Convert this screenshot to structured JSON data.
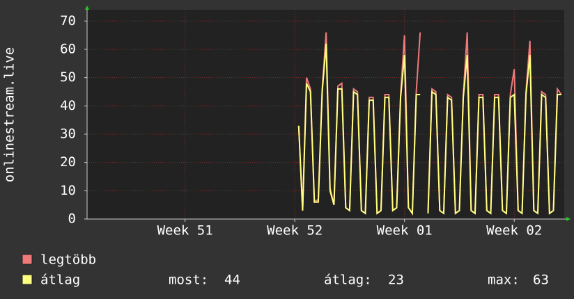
{
  "chart_data": {
    "type": "line",
    "y_label": "onlinestream.live",
    "x": [
      13.5,
      13.75,
      14.0,
      14.25,
      14.5,
      14.75,
      15.0,
      15.25,
      15.5,
      15.75,
      16.0,
      16.25,
      16.5,
      16.75,
      17.0,
      17.25,
      17.5,
      17.75,
      18.0,
      18.25,
      18.5,
      18.75,
      19.0,
      19.25,
      19.5,
      19.75,
      20.0,
      20.25,
      20.5,
      20.75,
      21.0,
      21.25,
      21.5,
      21.75,
      22.0,
      22.25,
      22.5,
      22.75,
      23.0,
      23.25,
      23.5,
      23.75,
      24.0,
      24.25,
      24.5,
      24.75,
      25.0,
      25.25,
      25.5,
      25.75,
      26.0,
      26.25,
      26.5,
      26.75,
      27.0,
      27.25,
      27.5,
      27.75,
      28.0,
      28.25,
      28.5,
      28.75,
      29.0,
      29.25,
      29.5,
      29.75,
      30.0,
      30.25
    ],
    "series": [
      {
        "name": "legtöbb",
        "color": "#f07a7a",
        "values": [
          33,
          3,
          50,
          46,
          6,
          7,
          46,
          66,
          11,
          5,
          47,
          48,
          4,
          3,
          46,
          45,
          3,
          2,
          43,
          43,
          2,
          3,
          44,
          44,
          3,
          4,
          44,
          65,
          4,
          2,
          45,
          66,
          null,
          2,
          46,
          45,
          3,
          2,
          44,
          43,
          2,
          3,
          44,
          66,
          3,
          2,
          44,
          44,
          3,
          2,
          44,
          44,
          3,
          2,
          44,
          53,
          3,
          2,
          45,
          63,
          3,
          2,
          45,
          44,
          2,
          3,
          46,
          44
        ]
      },
      {
        "name": "átlag",
        "color": "#ffff80",
        "values": [
          33,
          3,
          48,
          45,
          6,
          6,
          45,
          62,
          10,
          5,
          46,
          46,
          4,
          3,
          45,
          44,
          3,
          2,
          42,
          42,
          2,
          3,
          43,
          43,
          3,
          4,
          43,
          58,
          4,
          2,
          44,
          44,
          null,
          2,
          45,
          44,
          3,
          2,
          43,
          42,
          2,
          3,
          43,
          58,
          3,
          2,
          43,
          43,
          3,
          2,
          43,
          43,
          3,
          2,
          43,
          44,
          3,
          2,
          44,
          58,
          3,
          2,
          44,
          43,
          2,
          3,
          44,
          44
        ]
      }
    ],
    "xlim": [
      0,
      30.44
    ],
    "xticks": [
      {
        "value": 6.25,
        "label": "Week 51"
      },
      {
        "value": 13.25,
        "label": "Week 52"
      },
      {
        "value": 20.25,
        "label": "Week 01"
      },
      {
        "value": 27.25,
        "label": "Week 02"
      }
    ],
    "ylim": [
      0,
      74
    ],
    "yticks": [
      0,
      10,
      20,
      30,
      40,
      50,
      60,
      70
    ],
    "grid": true,
    "stats": [
      {
        "label": "most:",
        "value": 44
      },
      {
        "label": "átlag:",
        "value": 23
      },
      {
        "label": "max:",
        "value": 63
      }
    ]
  }
}
